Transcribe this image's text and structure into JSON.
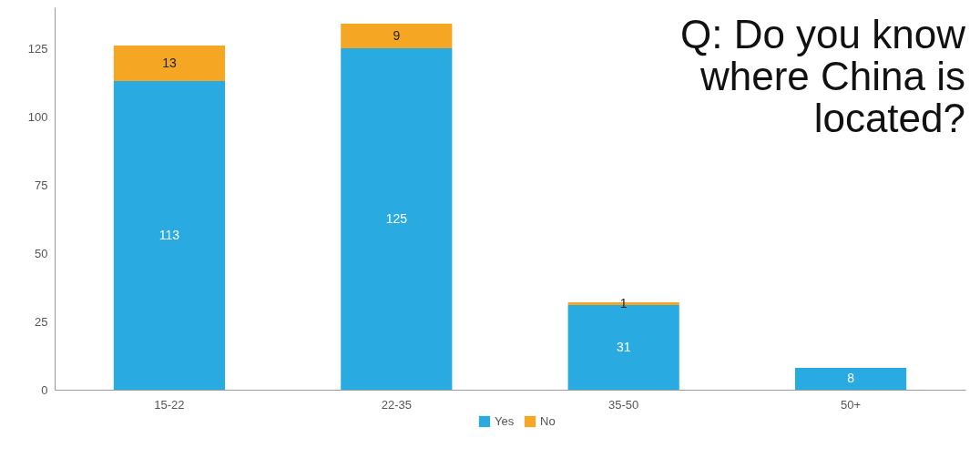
{
  "chart_data": {
    "type": "bar",
    "title": "Q: Do you know where China is located?",
    "categories": [
      "15-22",
      "22-35",
      "35-50",
      "50+"
    ],
    "series": [
      {
        "name": "Yes",
        "color": "#29abe2",
        "values": [
          113,
          125,
          31,
          8
        ]
      },
      {
        "name": "No",
        "color": "#f5a623",
        "values": [
          13,
          9,
          1,
          null
        ]
      }
    ],
    "stacked": true,
    "data_labels": true,
    "ylim": [
      0,
      140
    ],
    "yticks": [
      0,
      25,
      50,
      75,
      100,
      125
    ],
    "grid": false,
    "legend": "bottom"
  }
}
